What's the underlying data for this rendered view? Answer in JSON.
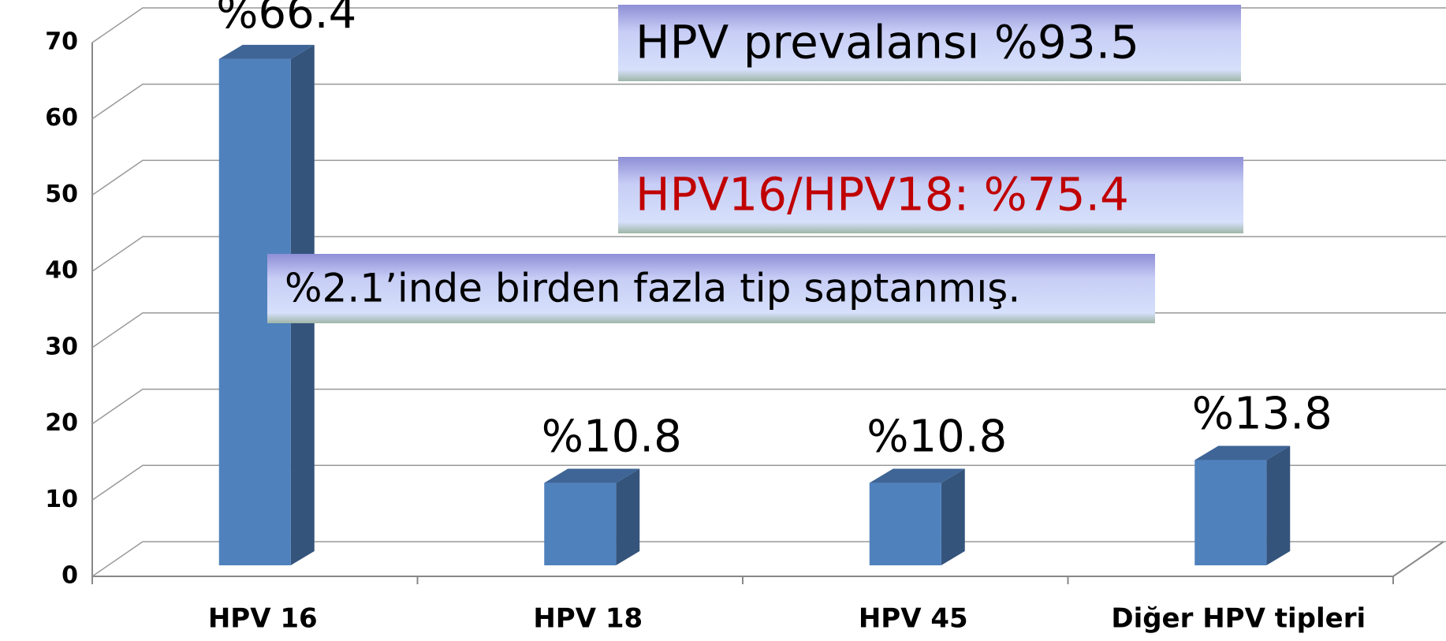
{
  "chart_data": {
    "type": "bar3d",
    "categories": [
      "HPV 16",
      "HPV 18",
      "HPV 45",
      "Diğer HPV tipleri"
    ],
    "values": [
      66.4,
      10.8,
      10.8,
      13.8
    ],
    "value_labels": [
      "%66.4",
      "%10.8",
      "%10.8",
      "%13.8"
    ],
    "color": "#4f81bd",
    "ylim": [
      0,
      70
    ],
    "yticks": [
      0,
      10,
      20,
      30,
      40,
      50,
      60,
      70
    ],
    "grid": true,
    "annotations": [
      {
        "text": "HPV prevalansı %93.5",
        "color": "#000000"
      },
      {
        "text": "HPV16/HPV18: %75.4",
        "color": "#c00000"
      },
      {
        "text": "%2.1’inde birden fazla tip saptanmış.",
        "color": "#000000"
      }
    ]
  }
}
